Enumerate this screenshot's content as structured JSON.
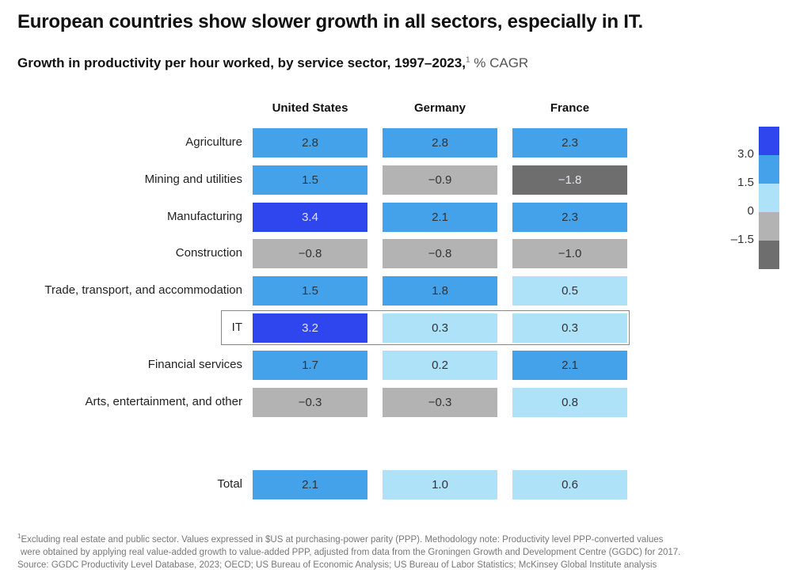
{
  "chart_data": {
    "type": "heatmap",
    "title": "European countries show slower growth in all sectors, especially in IT.",
    "subtitle": "Growth in productivity per hour worked, by service sector, 1997–2023,",
    "subtitle_footnote_mark": "1",
    "unit": "% CAGR",
    "columns": [
      "United States",
      "Germany",
      "France"
    ],
    "rows": [
      {
        "label": "Agriculture",
        "values": [
          2.8,
          2.8,
          2.3
        ]
      },
      {
        "label": "Mining and utilities",
        "values": [
          1.5,
          -0.9,
          -1.8
        ]
      },
      {
        "label": "Manufacturing",
        "values": [
          3.4,
          2.1,
          2.3
        ]
      },
      {
        "label": "Construction",
        "values": [
          -0.8,
          -0.8,
          -1.0
        ]
      },
      {
        "label": "Trade, transport, and accommodation",
        "values": [
          1.5,
          1.8,
          0.5
        ]
      },
      {
        "label": "IT",
        "values": [
          3.2,
          0.3,
          0.3
        ],
        "highlighted": true
      },
      {
        "label": "Financial services",
        "values": [
          1.7,
          0.2,
          2.1
        ]
      },
      {
        "label": "Arts, entertainment, and other",
        "values": [
          -0.3,
          -0.3,
          0.8
        ]
      }
    ],
    "total": {
      "label": "Total",
      "values": [
        2.1,
        1.0,
        0.6
      ]
    },
    "legend": {
      "ticks": [
        "3.0",
        "1.5",
        "0",
        "–1.5"
      ],
      "bins": [
        {
          "min": 3.0,
          "max": null,
          "color": "#2f45ee"
        },
        {
          "min": 1.5,
          "max": 3.0,
          "color": "#44a2ea"
        },
        {
          "min": 0,
          "max": 1.5,
          "color": "#aee2f8"
        },
        {
          "min": -1.5,
          "max": 0,
          "color": "#b3b3b3"
        },
        {
          "min": null,
          "max": -1.5,
          "color": "#6e6e6e"
        }
      ]
    }
  },
  "footnote": {
    "mark": "1",
    "lines": [
      "Excluding real estate and public sector. Values expressed in $US at purchasing-power parity (PPP). Methodology note: Productivity level PPP-converted values",
      "were obtained by applying real value-added growth to value-added PPP, adjusted from data from the Groningen Growth and Development Centre (GGDC) for 2017.",
      "Source: GGDC Productivity Level Database, 2023; OECD; US Bureau of Economic Analysis; US Bureau of Labor Statistics; McKinsey Global Institute analysis"
    ]
  }
}
